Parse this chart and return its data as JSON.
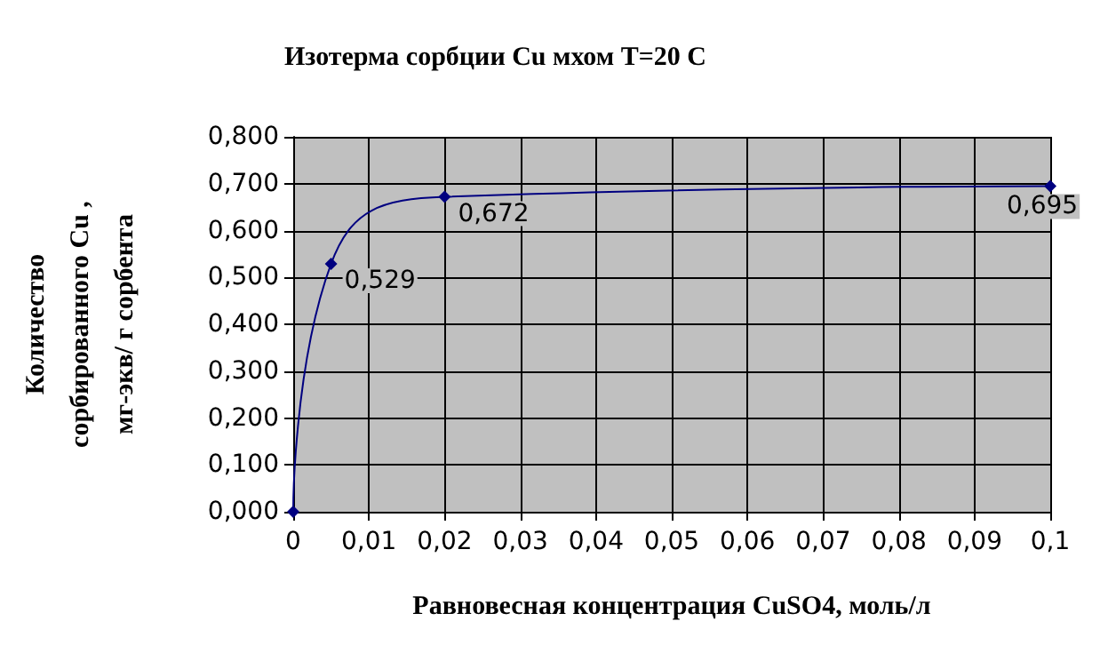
{
  "chart_data": {
    "type": "line",
    "title": "Изотерма сорбции Cu мхом T=20 C",
    "xlabel": "Равновесная концентрация CuSO4, моль/л",
    "ylabel": "Количество сорбированного Cu , мг-экв/ г сорбента",
    "x": [
      0,
      0.005,
      0.02,
      0.1
    ],
    "series": [
      {
        "color": "#000080",
        "values": [
          0,
          0.529,
          0.672,
          0.695
        ],
        "value_labels": [
          null,
          "0,529",
          "0,672",
          "0,695"
        ]
      }
    ],
    "xlim": [
      0,
      0.1
    ],
    "xticks": [
      {
        "value": 0,
        "label": "0"
      },
      {
        "value": 0.01,
        "label": "0,01"
      },
      {
        "value": 0.02,
        "label": "0,02"
      },
      {
        "value": 0.03,
        "label": "0,03"
      },
      {
        "value": 0.04,
        "label": "0,04"
      },
      {
        "value": 0.05,
        "label": "0,05"
      },
      {
        "value": 0.06,
        "label": "0,06"
      },
      {
        "value": 0.07,
        "label": "0,07"
      },
      {
        "value": 0.08,
        "label": "0,08"
      },
      {
        "value": 0.09,
        "label": "0,09"
      },
      {
        "value": 0.1,
        "label": "0,1"
      }
    ],
    "ylim": [
      0,
      0.8
    ],
    "yticks": [
      {
        "value": 0,
        "label": "0,000"
      },
      {
        "value": 0.1,
        "label": "0,100"
      },
      {
        "value": 0.2,
        "label": "0,200"
      },
      {
        "value": 0.3,
        "label": "0,300"
      },
      {
        "value": 0.4,
        "label": "0,400"
      },
      {
        "value": 0.5,
        "label": "0,500"
      },
      {
        "value": 0.6,
        "label": "0,600"
      },
      {
        "value": 0.7,
        "label": "0,700"
      },
      {
        "value": 0.8,
        "label": "0,800"
      }
    ],
    "grid": true,
    "marker": "diamond",
    "line_style": "solid"
  }
}
